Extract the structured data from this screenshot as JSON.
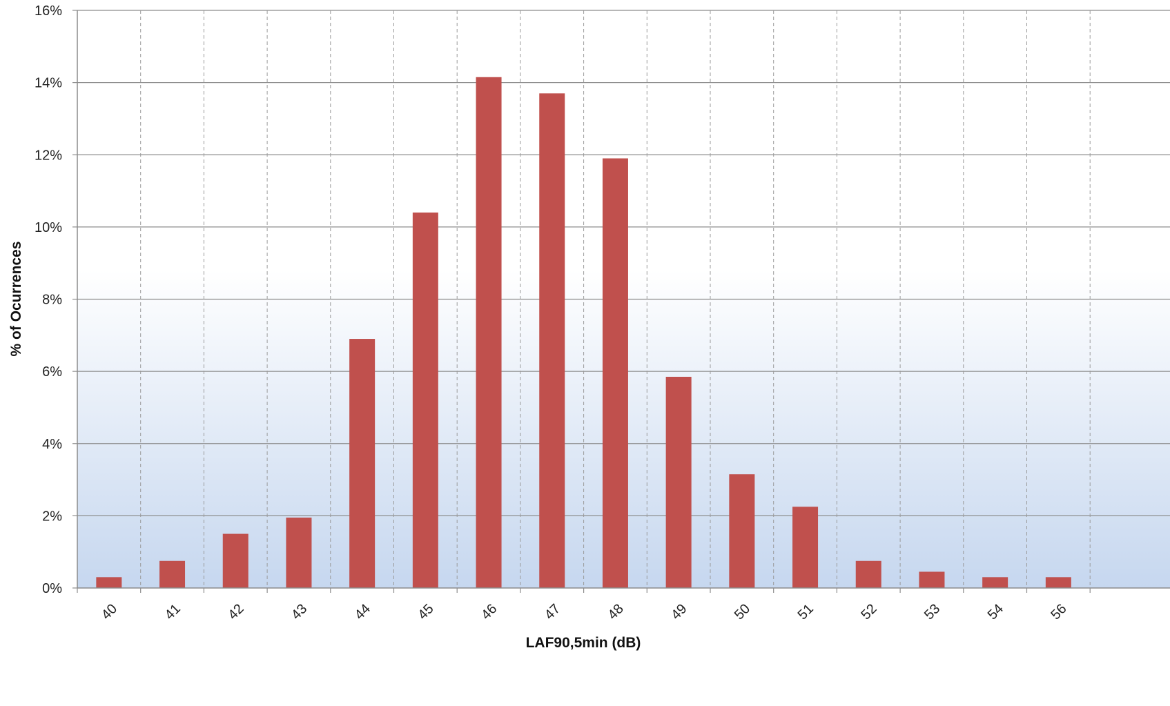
{
  "chart_data": {
    "type": "bar",
    "xlabel": "LAF90,5min (dB)",
    "ylabel": "% of Ocurrences",
    "categories": [
      "40",
      "41",
      "42",
      "43",
      "44",
      "45",
      "46",
      "47",
      "48",
      "49",
      "50",
      "51",
      "52",
      "53",
      "54",
      "56"
    ],
    "values": [
      0.3,
      0.75,
      1.5,
      1.95,
      6.9,
      10.4,
      14.15,
      13.7,
      11.9,
      5.85,
      3.15,
      2.25,
      0.75,
      0.45,
      0.3,
      0.3
    ],
    "ylim": [
      0,
      16
    ],
    "ytick_labels": [
      "0%",
      "2%",
      "4%",
      "6%",
      "8%",
      "10%",
      "12%",
      "14%",
      "16%"
    ],
    "grid": {
      "horizontal": "solid",
      "vertical": "dashed"
    },
    "colors": {
      "bar": "#c0504d",
      "grid": "#888888",
      "background_bottom": "#c6d7ef",
      "background_top": "#ffffff"
    }
  }
}
